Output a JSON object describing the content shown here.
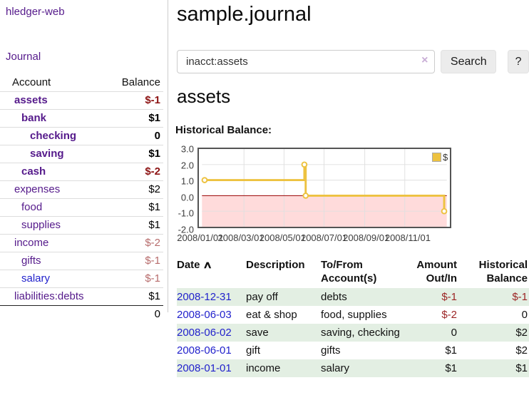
{
  "app": {
    "brand": "hledger-web",
    "nav_journal": "Journal"
  },
  "sidebar": {
    "col_account": "Account",
    "col_balance": "Balance",
    "accounts": [
      {
        "name": "assets",
        "balance": "$-1"
      },
      {
        "name": "bank",
        "balance": "$1"
      },
      {
        "name": "checking",
        "balance": "0"
      },
      {
        "name": "saving",
        "balance": "$1"
      },
      {
        "name": "cash",
        "balance": "$-2"
      },
      {
        "name": "expenses",
        "balance": "$2"
      },
      {
        "name": "food",
        "balance": "$1"
      },
      {
        "name": "supplies",
        "balance": "$1"
      },
      {
        "name": "income",
        "balance": "$-2"
      },
      {
        "name": "gifts",
        "balance": "$-1"
      },
      {
        "name": "salary",
        "balance": "$-1"
      },
      {
        "name": "liabilities:debts",
        "balance": "$1"
      }
    ],
    "total": "0"
  },
  "header": {
    "title": "sample.journal"
  },
  "search": {
    "value": "inacct:assets",
    "clear_icon": "×",
    "button_label": "Search",
    "help_label": "?"
  },
  "account_page": {
    "heading": "assets",
    "chart_title": "Historical Balance:"
  },
  "chart_data": {
    "type": "line",
    "title": "Historical Balance:",
    "step": true,
    "series": [
      {
        "name": "$",
        "color": "#edc240",
        "points": [
          [
            "2008-01-01",
            1
          ],
          [
            "2008-06-01",
            2
          ],
          [
            "2008-06-03",
            0
          ],
          [
            "2008-12-31",
            -1
          ]
        ]
      }
    ],
    "ylim": [
      -2,
      3
    ],
    "yticks": [
      "3.0",
      "2.0",
      "1.0",
      "0.0",
      "-1.0",
      "-2.0"
    ],
    "xticks": [
      "2008/01/01",
      "2008/03/01",
      "2008/05/01",
      "2008/07/01",
      "2008/09/01",
      "2008/11/01"
    ],
    "xrange": [
      "2007-12-28",
      "2009-01-04"
    ],
    "grid": true,
    "negative_region_color": "#ffdbdb",
    "zero_line_color": "#990000",
    "legend": {
      "label": "$",
      "position": "top-right"
    }
  },
  "register": {
    "headers": {
      "date": "Date",
      "sort_icon": "∧",
      "description": "Description",
      "accounts": "To/From Account(s)",
      "amount": "Amount Out/In",
      "balance": "Historical Balance"
    },
    "rows": [
      {
        "date": "2008-12-31",
        "description": "pay off",
        "accounts": "debts",
        "amount": "$-1",
        "balance": "$-1"
      },
      {
        "date": "2008-06-03",
        "description": "eat & shop",
        "accounts": "food, supplies",
        "amount": "$-2",
        "balance": "0"
      },
      {
        "date": "2008-06-02",
        "description": "save",
        "accounts": "saving, checking",
        "amount": "0",
        "balance": "$2"
      },
      {
        "date": "2008-06-01",
        "description": "gift",
        "accounts": "gifts",
        "amount": "$1",
        "balance": "$2"
      },
      {
        "date": "2008-01-01",
        "description": "income",
        "accounts": "salary",
        "amount": "$1",
        "balance": "$1"
      }
    ]
  }
}
